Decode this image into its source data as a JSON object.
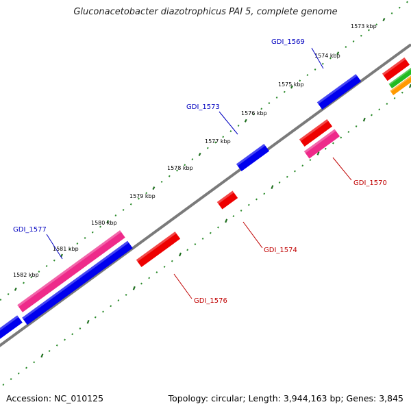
{
  "title": "Gluconacetobacter diazotrophicus PAI 5, complete genome",
  "footer": {
    "accession": "Accession: NC_010125",
    "topology": "Topology: circular; Length: 3,944,163 bp; Genes: 3,845"
  },
  "colors": {
    "backbone": "#808080",
    "tick_major": "#1f6f1f",
    "tick_minor": "#2a8a2a",
    "forward_label": "#0000c0",
    "reverse_label": "#c00000",
    "blue_gene": "#0000ee",
    "red_gene": "#ee0000",
    "pink_gene": "#ee2a8a",
    "green_gene": "#22bb22",
    "orange_gene": "#ff9900"
  },
  "ticks": [
    {
      "label": "1573 kbp"
    },
    {
      "label": "1574 kbp"
    },
    {
      "label": "1575 kbp"
    },
    {
      "label": "1576 kbp"
    },
    {
      "label": "1577 kbp"
    },
    {
      "label": "1578 kbp"
    },
    {
      "label": "1579 kbp"
    },
    {
      "label": "1580 kbp"
    },
    {
      "label": "1581 kbp"
    },
    {
      "label": "1582 kbp"
    }
  ],
  "gene_labels": [
    {
      "text": "GDI_1569",
      "strand": "forward"
    },
    {
      "text": "GDI_1573",
      "strand": "forward"
    },
    {
      "text": "GDI_1577",
      "strand": "forward"
    },
    {
      "text": "GDI_1570",
      "strand": "reverse"
    },
    {
      "text": "GDI_1574",
      "strand": "reverse"
    },
    {
      "text": "GDI_1576",
      "strand": "reverse"
    }
  ]
}
